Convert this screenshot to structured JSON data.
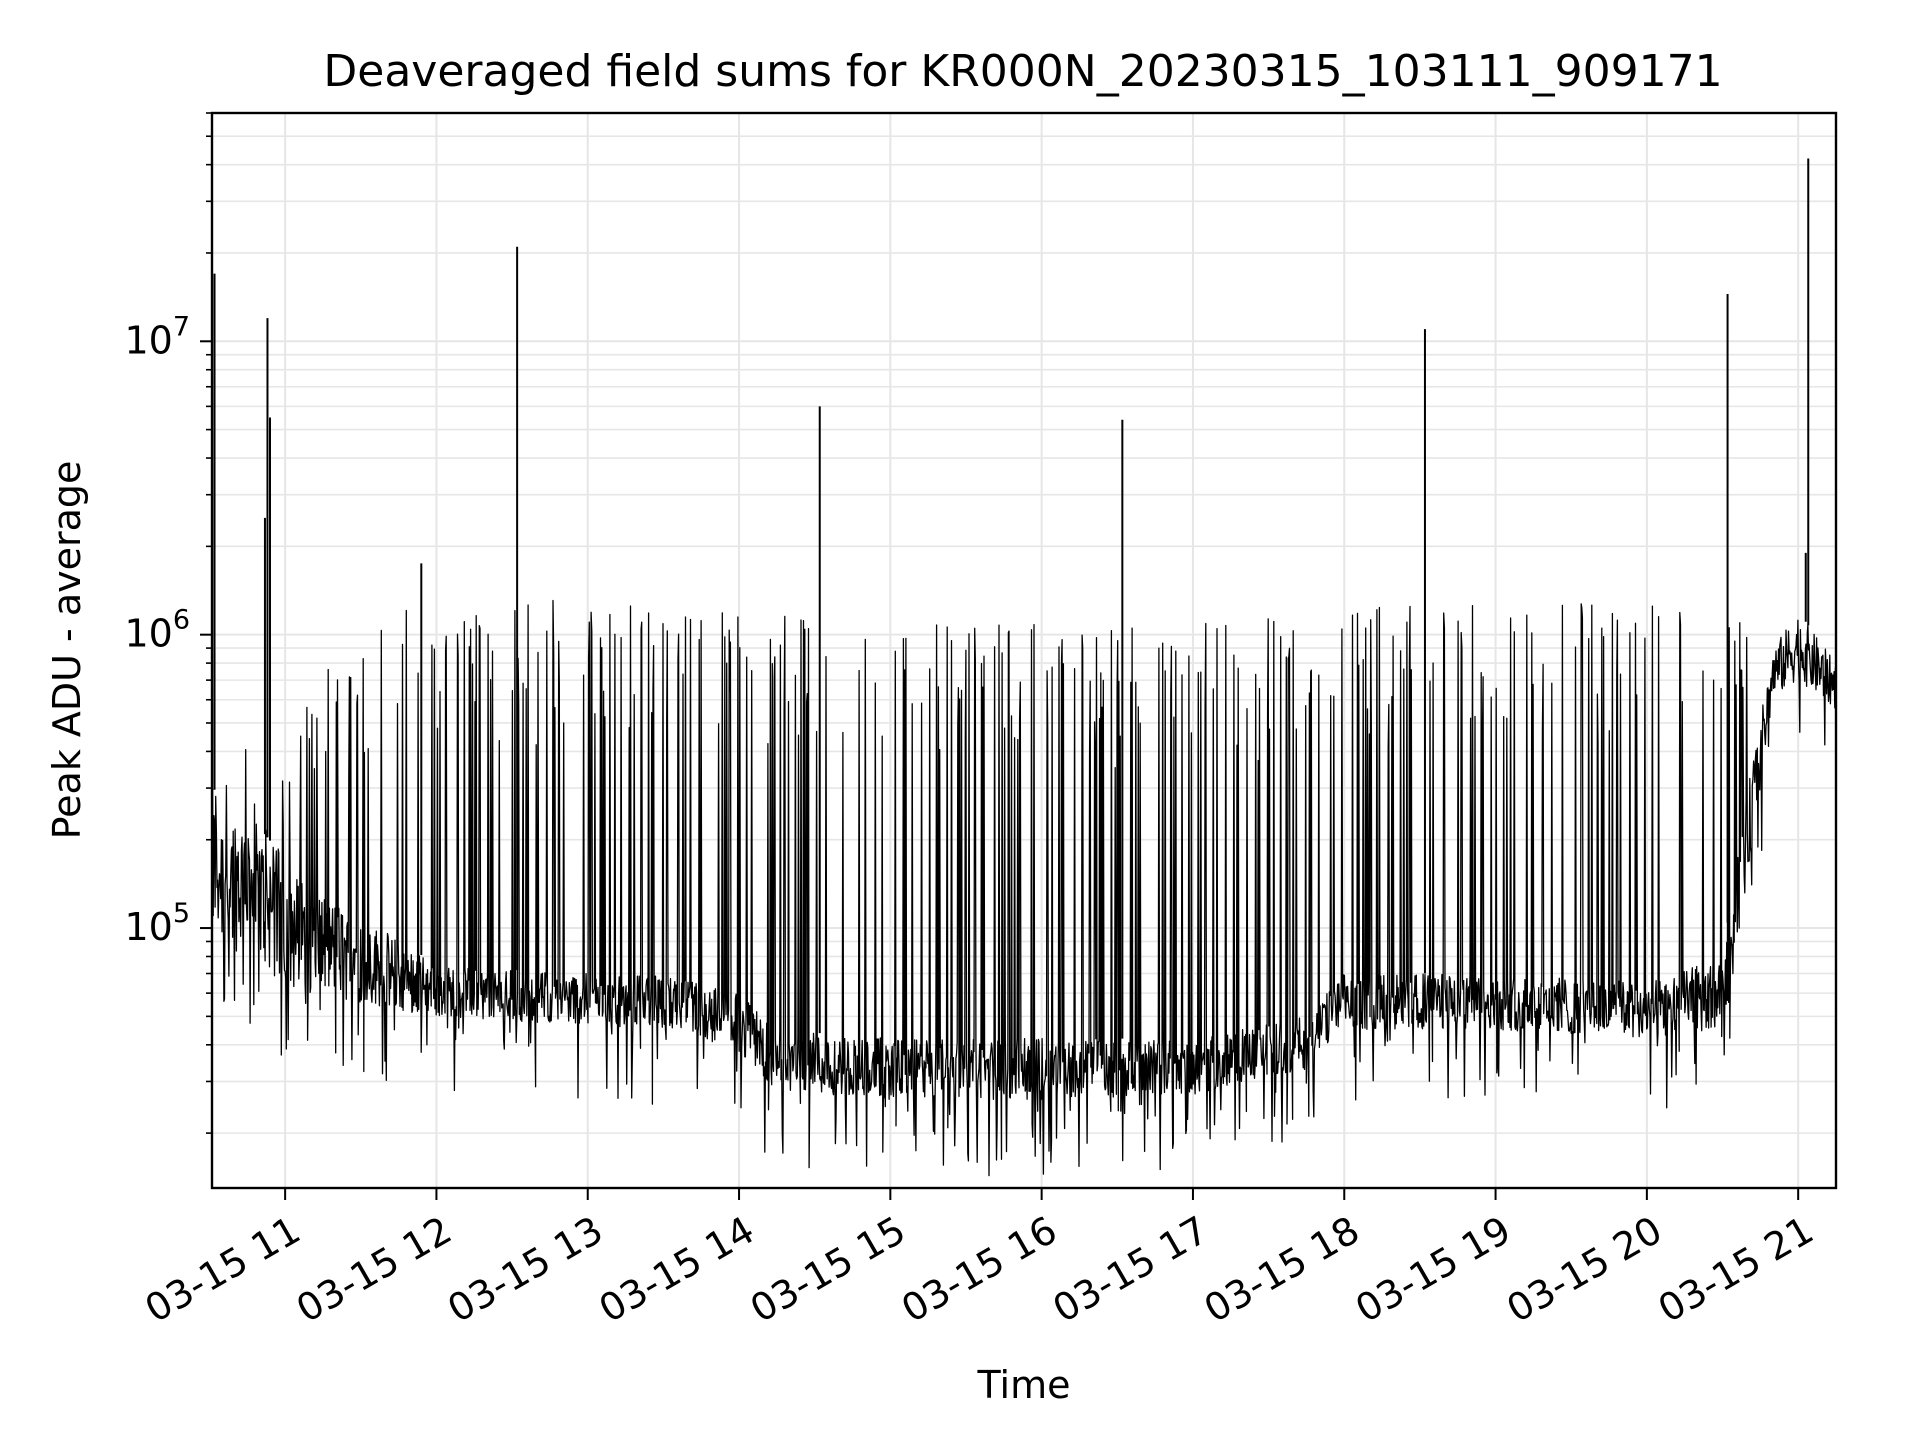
{
  "chart_data": {
    "type": "line",
    "title": "Deaveraged field sums for KR000N_20230315_103111_909171",
    "xlabel": "Time",
    "ylabel": "Peak ADU - average",
    "x_scale": "time",
    "y_scale": "log",
    "xlim": [
      "03-15 10:31",
      "03-15 21:15"
    ],
    "ylim": [
      13000,
      60000000
    ],
    "grid": true,
    "legend": "none",
    "line_color": "#000000",
    "grid_color": "#e6e6e6",
    "x_ticks": [
      {
        "t": "03-15 11:00",
        "label": "03-15 11"
      },
      {
        "t": "03-15 12:00",
        "label": "03-15 12"
      },
      {
        "t": "03-15 13:00",
        "label": "03-15 13"
      },
      {
        "t": "03-15 14:00",
        "label": "03-15 14"
      },
      {
        "t": "03-15 15:00",
        "label": "03-15 15"
      },
      {
        "t": "03-15 16:00",
        "label": "03-15 16"
      },
      {
        "t": "03-15 17:00",
        "label": "03-15 17"
      },
      {
        "t": "03-15 18:00",
        "label": "03-15 18"
      },
      {
        "t": "03-15 19:00",
        "label": "03-15 19"
      },
      {
        "t": "03-15 20:00",
        "label": "03-15 20"
      },
      {
        "t": "03-15 21:00",
        "label": "03-15 21"
      }
    ],
    "y_ticks": [
      {
        "value": 100000,
        "base": "10",
        "exp": "5"
      },
      {
        "value": 1000000,
        "base": "10",
        "exp": "6"
      },
      {
        "value": 10000000,
        "base": "10",
        "exp": "7"
      }
    ],
    "baseline_envelope": [
      {
        "t": "03-15 10:31",
        "low": 90000,
        "high": 300000
      },
      {
        "t": "03-15 10:45",
        "low": 80000,
        "high": 250000
      },
      {
        "t": "03-15 11:05",
        "low": 60000,
        "high": 150000
      },
      {
        "t": "03-15 11:30",
        "low": 55000,
        "high": 110000
      },
      {
        "t": "03-15 12:00",
        "low": 50000,
        "high": 75000
      },
      {
        "t": "03-15 12:30",
        "low": 48000,
        "high": 72000
      },
      {
        "t": "03-15 13:00",
        "low": 47000,
        "high": 70000
      },
      {
        "t": "03-15 13:30",
        "low": 45000,
        "high": 70000
      },
      {
        "t": "03-15 14:00",
        "low": 38000,
        "high": 60000
      },
      {
        "t": "03-15 14:15",
        "low": 28000,
        "high": 45000
      },
      {
        "t": "03-15 15:00",
        "low": 26000,
        "high": 42000
      },
      {
        "t": "03-15 16:00",
        "low": 26000,
        "high": 42000
      },
      {
        "t": "03-15 17:00",
        "low": 27000,
        "high": 42000
      },
      {
        "t": "03-15 17:45",
        "low": 33000,
        "high": 50000
      },
      {
        "t": "03-15 18:00",
        "low": 45000,
        "high": 70000
      },
      {
        "t": "03-15 19:00",
        "low": 45000,
        "high": 70000
      },
      {
        "t": "03-15 20:00",
        "low": 42000,
        "high": 65000
      },
      {
        "t": "03-15 20:30",
        "low": 45000,
        "high": 80000
      },
      {
        "t": "03-15 20:40",
        "low": 150000,
        "high": 300000
      },
      {
        "t": "03-15 20:50",
        "low": 600000,
        "high": 900000
      },
      {
        "t": "03-15 21:00",
        "low": 700000,
        "high": 1200000
      },
      {
        "t": "03-15 21:15",
        "low": 550000,
        "high": 800000
      }
    ],
    "spike_ceiling": [
      {
        "t": "03-15 10:31",
        "value": 400000
      },
      {
        "t": "03-15 11:00",
        "value": 400000
      },
      {
        "t": "03-15 11:30",
        "value": 1100000
      },
      {
        "t": "03-15 12:00",
        "value": 1200000
      },
      {
        "t": "03-15 13:00",
        "value": 1200000
      },
      {
        "t": "03-15 14:00",
        "value": 1100000
      },
      {
        "t": "03-15 15:00",
        "value": 1000000
      },
      {
        "t": "03-15 17:00",
        "value": 1000000
      },
      {
        "t": "03-15 18:00",
        "value": 1150000
      },
      {
        "t": "03-15 20:30",
        "value": 1200000
      }
    ],
    "spikes": [
      {
        "t": "03-15 10:32",
        "value": 17000000
      },
      {
        "t": "03-15 10:53",
        "value": 12000000
      },
      {
        "t": "03-15 10:54",
        "value": 5500000
      },
      {
        "t": "03-15 10:52",
        "value": 2500000
      },
      {
        "t": "03-15 11:54",
        "value": 1750000
      },
      {
        "t": "03-15 12:32",
        "value": 21000000
      },
      {
        "t": "03-15 14:32",
        "value": 6000000
      },
      {
        "t": "03-15 16:32",
        "value": 5400000
      },
      {
        "t": "03-15 18:32",
        "value": 11000000
      },
      {
        "t": "03-15 20:32",
        "value": 14500000
      },
      {
        "t": "03-15 21:04",
        "value": 42000000
      },
      {
        "t": "03-15 21:03",
        "value": 1900000
      }
    ]
  }
}
